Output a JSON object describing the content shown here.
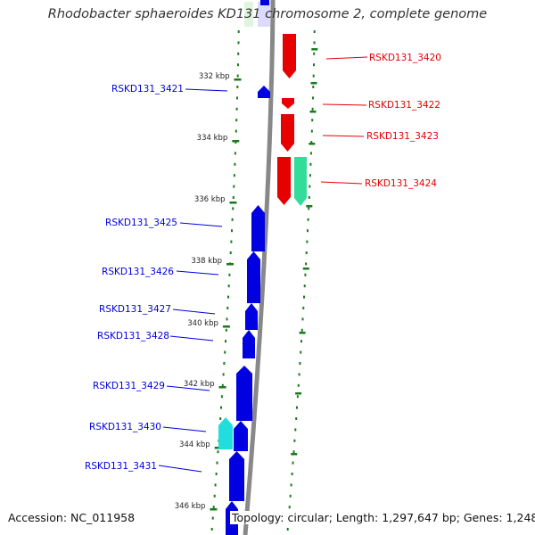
{
  "title": "Rhodobacter sphaeroides KD131 chromosome 2, complete genome",
  "footer": {
    "accession": "Accession: NC_011958",
    "topology": "Topology: circular; Length: 1,297,647 bp; Genes: 1,248"
  },
  "colors": {
    "plus_strand": "#e60000",
    "minus_strand": "#0000e0",
    "plus_rna": "#33dd99",
    "minus_rna": "#22dddd",
    "tick": "#1a7a1a",
    "backbone": "#888888"
  },
  "scale": {
    "tick_labels": [
      "332 kbp",
      "334 kbp",
      "336 kbp",
      "338 kbp",
      "340 kbp",
      "342 kbp",
      "344 kbp",
      "346 kbp"
    ],
    "unit": "kbp"
  },
  "genes": [
    {
      "name": "RSKD131_3420",
      "strand": "+"
    },
    {
      "name": "RSKD131_3421",
      "strand": "-"
    },
    {
      "name": "RSKD131_3422",
      "strand": "+"
    },
    {
      "name": "RSKD131_3423",
      "strand": "+"
    },
    {
      "name": "RSKD131_3424",
      "strand": "+"
    },
    {
      "name": "RSKD131_3425",
      "strand": "-"
    },
    {
      "name": "RSKD131_3426",
      "strand": "-"
    },
    {
      "name": "RSKD131_3427",
      "strand": "-"
    },
    {
      "name": "RSKD131_3428",
      "strand": "-"
    },
    {
      "name": "RSKD131_3429",
      "strand": "-"
    },
    {
      "name": "RSKD131_3430",
      "strand": "-"
    },
    {
      "name": "RSKD131_3431",
      "strand": "-"
    }
  ]
}
